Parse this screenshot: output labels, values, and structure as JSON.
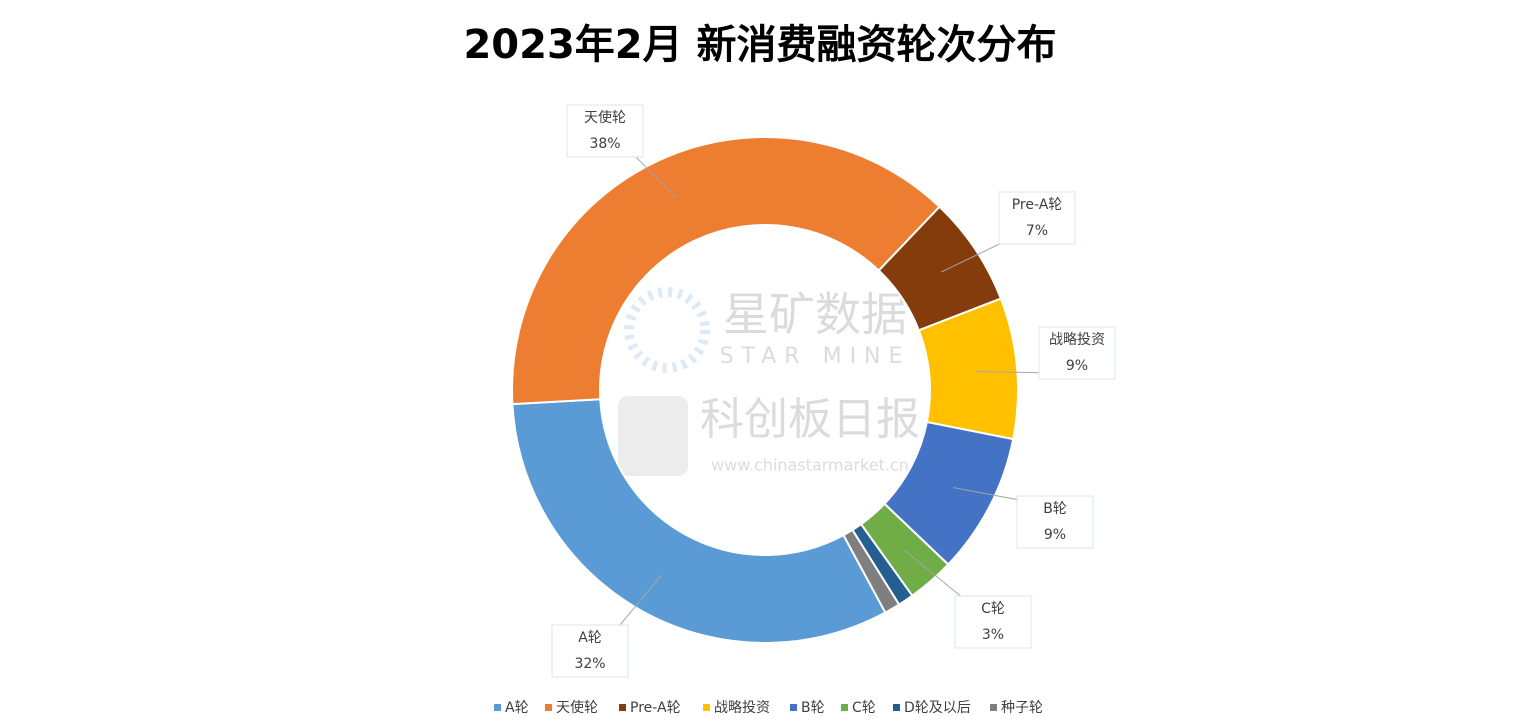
{
  "chart_data": {
    "type": "donut",
    "title": "2023年2月 新消费融资轮次分布",
    "categories": [
      "A轮",
      "天使轮",
      "Pre-A轮",
      "战略投资",
      "B轮",
      "C轮",
      "D轮及以后",
      "种子轮"
    ],
    "values": [
      32,
      38,
      7,
      9,
      9,
      3,
      1,
      1
    ],
    "value_labels": [
      "32%",
      "38%",
      "7%",
      "9%",
      "9%",
      "3%",
      null,
      null
    ],
    "colors": [
      "#5b9bd5",
      "#ed7d31",
      "#843c0c",
      "#ffc000",
      "#4472c4",
      "#70ad47",
      "#255e91",
      "#7f7f7f"
    ],
    "legend": "bottom",
    "watermark": [
      "星矿数据",
      "STAR MINE",
      "科创板日报",
      "www.chinastarmarket.cn"
    ]
  }
}
